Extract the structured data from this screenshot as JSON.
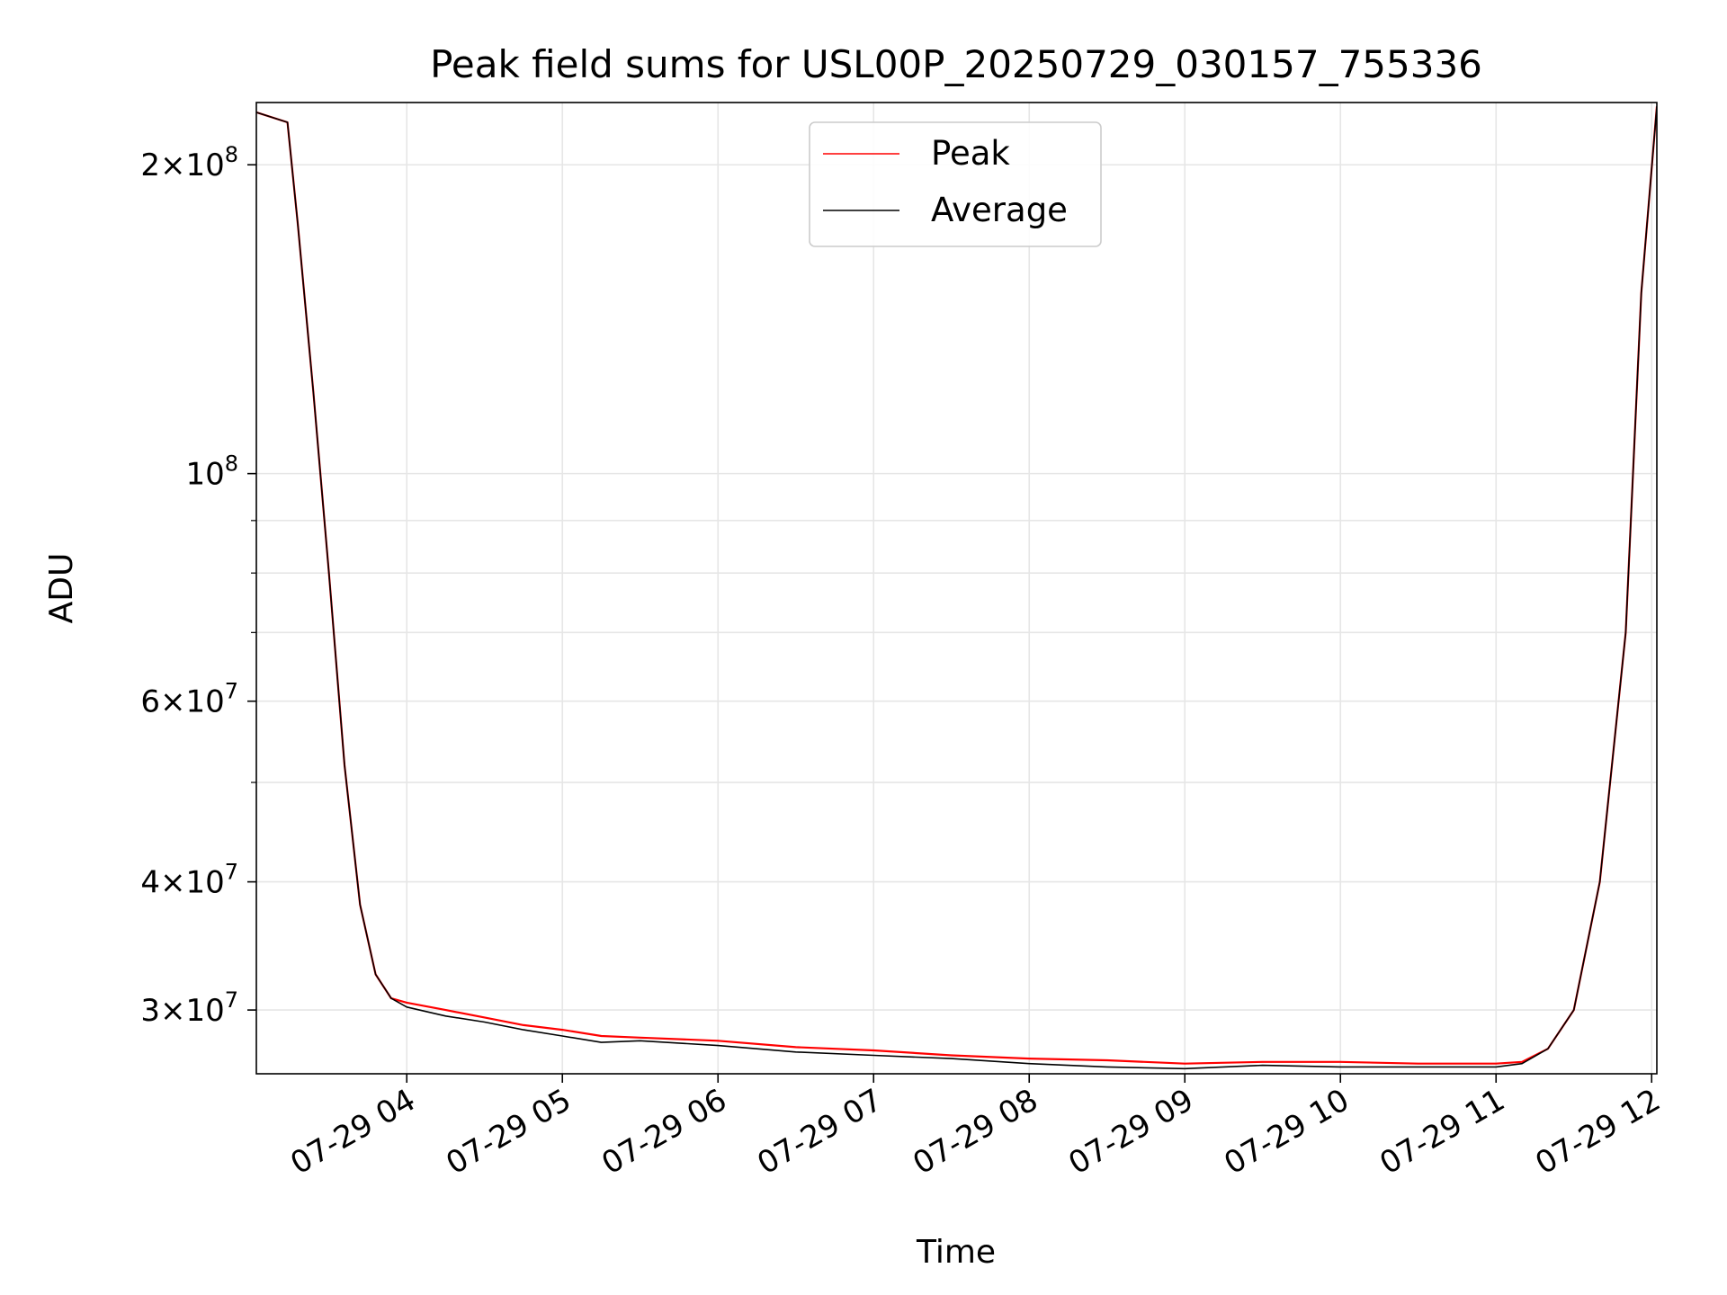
{
  "chart_data": {
    "type": "line",
    "title": "Peak field sums for USL00P_20250729_030157_755336",
    "xlabel": "Time",
    "ylabel": "ADU",
    "x_range": [
      "2025-07-29T03:02",
      "2025-07-29T12:02"
    ],
    "ylim": [
      26000000,
      230000000
    ],
    "y_scale": "log",
    "grid": true,
    "legend": {
      "position": "upper-center"
    },
    "x_ticks": [
      {
        "t": "2025-07-29T04:00",
        "label": "07-29 04"
      },
      {
        "t": "2025-07-29T05:00",
        "label": "07-29 05"
      },
      {
        "t": "2025-07-29T06:00",
        "label": "07-29 06"
      },
      {
        "t": "2025-07-29T07:00",
        "label": "07-29 07"
      },
      {
        "t": "2025-07-29T08:00",
        "label": "07-29 08"
      },
      {
        "t": "2025-07-29T09:00",
        "label": "07-29 09"
      },
      {
        "t": "2025-07-29T10:00",
        "label": "07-29 10"
      },
      {
        "t": "2025-07-29T11:00",
        "label": "07-29 11"
      },
      {
        "t": "2025-07-29T12:00",
        "label": "07-29 12"
      }
    ],
    "y_ticks": [
      {
        "value": 30000000,
        "mant": "3",
        "exp": "7"
      },
      {
        "value": 40000000,
        "mant": "4",
        "exp": "7"
      },
      {
        "value": 60000000,
        "mant": "6",
        "exp": "7"
      },
      {
        "value": 100000000,
        "mant": "",
        "exp": "8"
      },
      {
        "value": 200000000,
        "mant": "2",
        "exp": "8"
      }
    ],
    "y_minor_ticks": [
      50000000,
      70000000,
      80000000,
      90000000
    ],
    "series": [
      {
        "name": "Peak",
        "color": "#ff0000",
        "x": [
          "2025-07-29T03:02",
          "2025-07-29T03:14",
          "2025-07-29T03:18",
          "2025-07-29T03:24",
          "2025-07-29T03:30",
          "2025-07-29T03:36",
          "2025-07-29T03:42",
          "2025-07-29T03:48",
          "2025-07-29T03:54",
          "2025-07-29T04:00",
          "2025-07-29T04:15",
          "2025-07-29T04:30",
          "2025-07-29T04:45",
          "2025-07-29T05:00",
          "2025-07-29T05:15",
          "2025-07-29T05:30",
          "2025-07-29T06:00",
          "2025-07-29T06:30",
          "2025-07-29T07:00",
          "2025-07-29T07:30",
          "2025-07-29T08:00",
          "2025-07-29T08:30",
          "2025-07-29T09:00",
          "2025-07-29T09:30",
          "2025-07-29T10:00",
          "2025-07-29T10:30",
          "2025-07-29T11:00",
          "2025-07-29T11:10",
          "2025-07-29T11:20",
          "2025-07-29T11:30",
          "2025-07-29T11:40",
          "2025-07-29T11:50",
          "2025-07-29T11:56",
          "2025-07-29T12:02"
        ],
        "values": [
          225000000,
          220000000,
          175000000,
          120000000,
          80000000,
          52000000,
          38000000,
          32500000,
          30800000,
          30500000,
          30000000,
          29500000,
          29000000,
          28700000,
          28300000,
          28200000,
          28000000,
          27600000,
          27400000,
          27100000,
          26900000,
          26800000,
          26600000,
          26700000,
          26700000,
          26600000,
          26600000,
          26700000,
          27500000,
          30000000,
          40000000,
          70000000,
          150000000,
          228000000
        ]
      },
      {
        "name": "Average",
        "color": "#000000",
        "x": [
          "2025-07-29T03:02",
          "2025-07-29T03:14",
          "2025-07-29T03:18",
          "2025-07-29T03:24",
          "2025-07-29T03:30",
          "2025-07-29T03:36",
          "2025-07-29T03:42",
          "2025-07-29T03:48",
          "2025-07-29T03:54",
          "2025-07-29T04:00",
          "2025-07-29T04:15",
          "2025-07-29T04:30",
          "2025-07-29T04:45",
          "2025-07-29T05:00",
          "2025-07-29T05:15",
          "2025-07-29T05:30",
          "2025-07-29T06:00",
          "2025-07-29T06:30",
          "2025-07-29T07:00",
          "2025-07-29T07:30",
          "2025-07-29T08:00",
          "2025-07-29T08:30",
          "2025-07-29T09:00",
          "2025-07-29T09:30",
          "2025-07-29T10:00",
          "2025-07-29T10:30",
          "2025-07-29T11:00",
          "2025-07-29T11:10",
          "2025-07-29T11:20",
          "2025-07-29T11:30",
          "2025-07-29T11:40",
          "2025-07-29T11:50",
          "2025-07-29T11:56",
          "2025-07-29T12:02"
        ],
        "values": [
          225000000,
          220000000,
          175000000,
          120000000,
          80000000,
          52000000,
          38000000,
          32500000,
          30800000,
          30200000,
          29600000,
          29200000,
          28700000,
          28300000,
          27900000,
          28000000,
          27700000,
          27300000,
          27100000,
          26900000,
          26600000,
          26400000,
          26300000,
          26500000,
          26400000,
          26400000,
          26400000,
          26600000,
          27500000,
          30000000,
          40000000,
          70000000,
          150000000,
          228000000
        ]
      }
    ]
  }
}
